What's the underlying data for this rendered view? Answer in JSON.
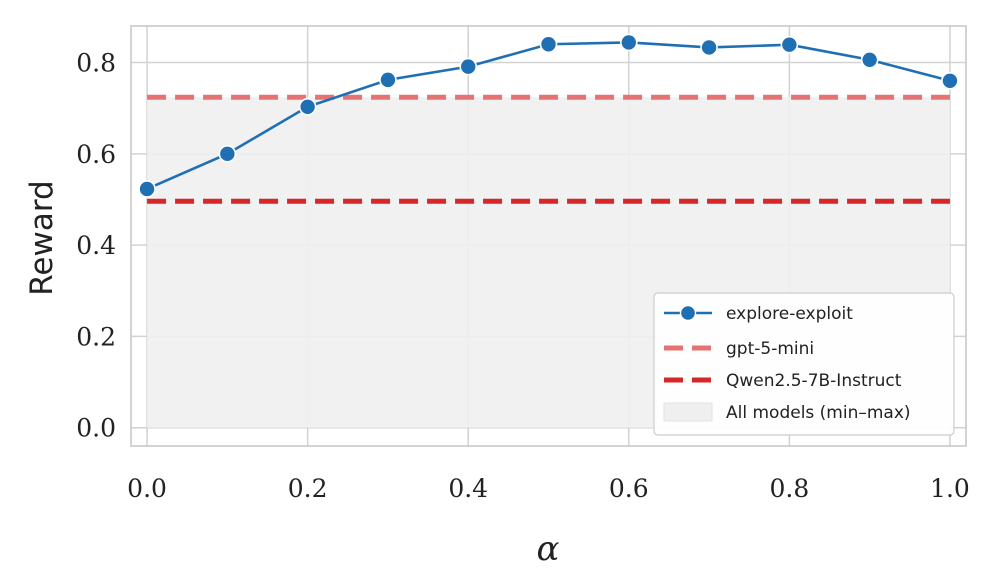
{
  "chart_data": {
    "type": "line",
    "xlabel": "α",
    "ylabel": "Reward",
    "xlim": [
      -0.02,
      1.02
    ],
    "ylim": [
      -0.04,
      0.88
    ],
    "x_ticks": [
      0.0,
      0.2,
      0.4,
      0.6,
      0.8,
      1.0
    ],
    "x_tick_labels": [
      "0.0",
      "0.2",
      "0.4",
      "0.6",
      "0.8",
      "1.0"
    ],
    "y_ticks": [
      0.0,
      0.2,
      0.4,
      0.6,
      0.8
    ],
    "y_tick_labels": [
      "0.0",
      "0.2",
      "0.4",
      "0.6",
      "0.8"
    ],
    "grid": true,
    "legend_position": "bottom-right",
    "series": [
      {
        "name": "explore-exploit",
        "x": [
          0.0,
          0.1,
          0.2,
          0.3,
          0.4,
          0.5,
          0.6,
          0.7,
          0.8,
          0.9,
          1.0
        ],
        "values": [
          0.523,
          0.6,
          0.703,
          0.762,
          0.791,
          0.84,
          0.844,
          0.833,
          0.839,
          0.806,
          0.76
        ],
        "color": "#1f6fb4",
        "style": "solid-with-markers"
      }
    ],
    "reference_lines": [
      {
        "name": "gpt-5-mini",
        "y": 0.724,
        "color": "#e57373",
        "style": "dashed"
      },
      {
        "name": "Qwen2.5-7B-Instruct",
        "y": 0.496,
        "color": "#d62728",
        "style": "dashed"
      }
    ],
    "band": {
      "name": "All models (min–max)",
      "y_min": 0.0,
      "y_max": 0.724,
      "color": "#efefef"
    }
  }
}
